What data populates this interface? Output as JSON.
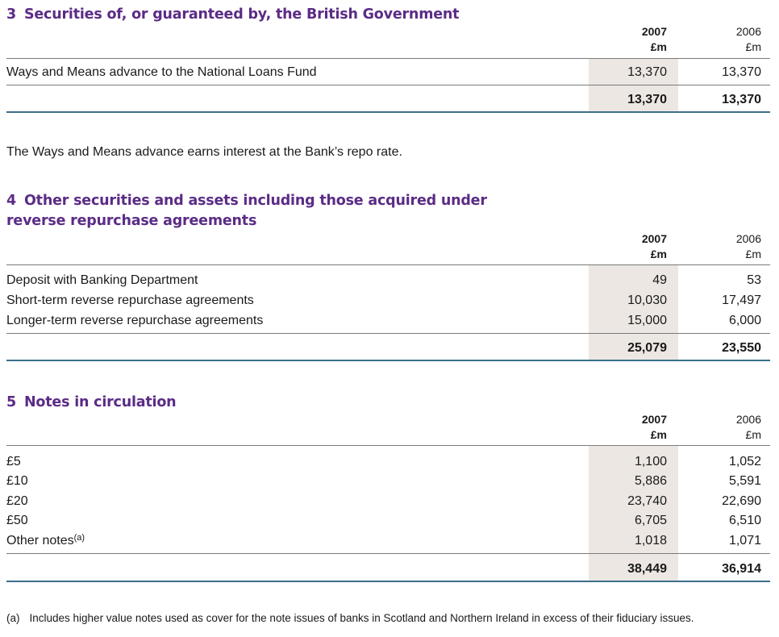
{
  "sections": [
    {
      "num": "3",
      "title": "Securities of, or guaranteed by, the British Government",
      "col_2007": {
        "year": "2007",
        "unit": "£m"
      },
      "col_2006": {
        "year": "2006",
        "unit": "£m"
      },
      "rows": [
        {
          "label": "Ways and Means advance to the National Loans Fund",
          "v2007": "13,370",
          "v2006": "13,370"
        }
      ],
      "total": {
        "v2007": "13,370",
        "v2006": "13,370"
      },
      "note": "The Ways and Means advance earns interest at the Bank’s repo rate."
    },
    {
      "num": "4",
      "title_line1": "Other securities and assets including those acquired under",
      "title_line2": "reverse repurchase agreements",
      "col_2007": {
        "year": "2007",
        "unit": "£m"
      },
      "col_2006": {
        "year": "2006",
        "unit": "£m"
      },
      "rows": [
        {
          "label": "Deposit with Banking Department",
          "v2007": "49",
          "v2006": "53"
        },
        {
          "label": "Short-term reverse repurchase agreements",
          "v2007": "10,030",
          "v2006": "17,497"
        },
        {
          "label": "Longer-term reverse repurchase agreements",
          "v2007": "15,000",
          "v2006": "6,000"
        }
      ],
      "total": {
        "v2007": "25,079",
        "v2006": "23,550"
      }
    },
    {
      "num": "5",
      "title": "Notes in circulation",
      "col_2007": {
        "year": "2007",
        "unit": "£m"
      },
      "col_2006": {
        "year": "2006",
        "unit": "£m"
      },
      "rows": [
        {
          "label": "£5",
          "v2007": "1,100",
          "v2006": "1,052"
        },
        {
          "label": "£10",
          "v2007": "5,886",
          "v2006": "5,591"
        },
        {
          "label": "£20",
          "v2007": "23,740",
          "v2006": "22,690"
        },
        {
          "label": "£50",
          "v2007": "6,705",
          "v2006": "6,510"
        },
        {
          "label": "Other notes",
          "sup": "(a)",
          "v2007": "1,018",
          "v2006": "1,071"
        }
      ],
      "total": {
        "v2007": "38,449",
        "v2006": "36,914"
      }
    }
  ],
  "footnote": {
    "marker": "(a)",
    "text": "Includes higher value notes used as cover for the note issues of banks in Scotland and Northern Ireland in excess of their fiduciary issues."
  }
}
